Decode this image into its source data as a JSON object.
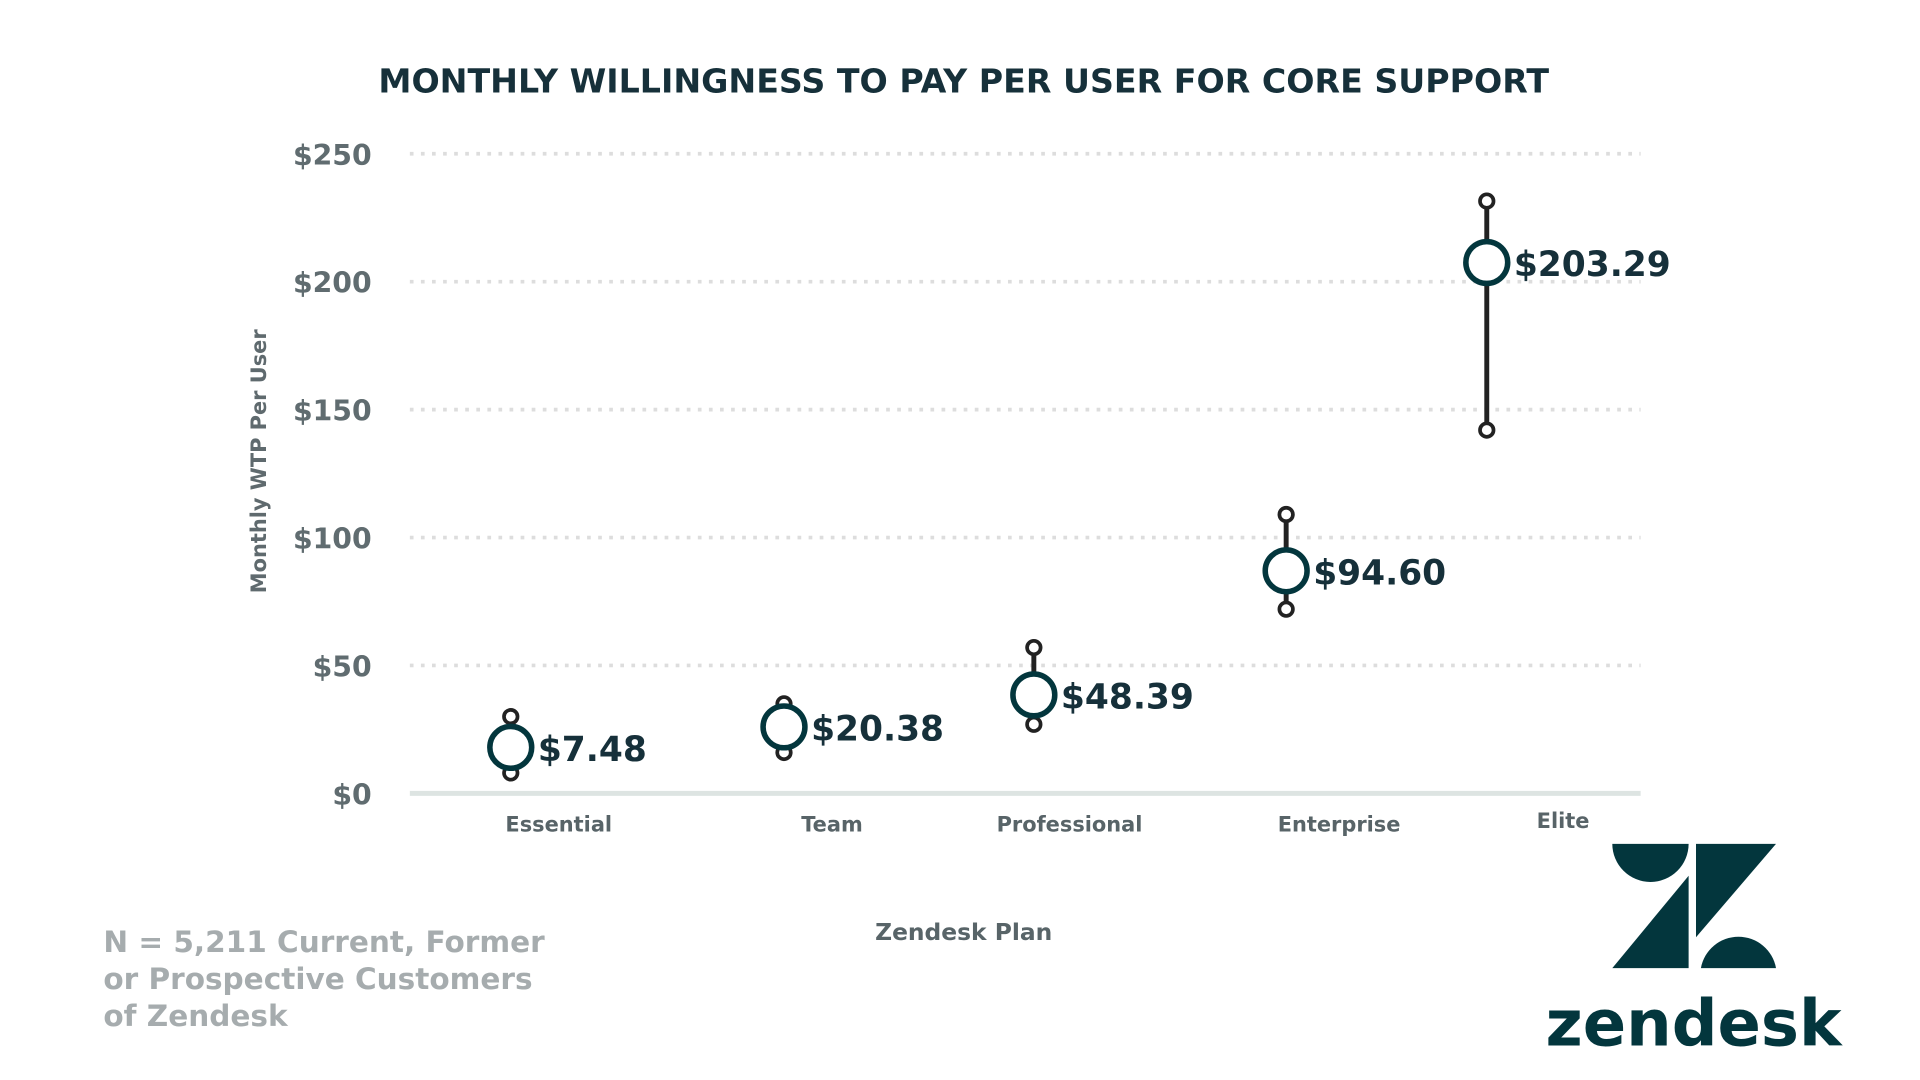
{
  "colors": {
    "marker": "#03363d",
    "whisker": "#222222",
    "grid": "#dddddd",
    "baseline": "#dde4e2",
    "brand": "#03363d"
  },
  "chart_data": {
    "type": "scatter",
    "title": "MONTHLY WILLINGNESS TO PAY PER USER FOR CORE SUPPORT",
    "xlabel": "Zendesk Plan",
    "ylabel": "Monthly WTP Per User",
    "ylim": [
      0,
      250
    ],
    "yticks": [
      0,
      50,
      100,
      150,
      200,
      250
    ],
    "ytick_labels": [
      "$0",
      "$50",
      "$100",
      "$150",
      "$200",
      "$250"
    ],
    "grid": true,
    "categories": [
      "Essential",
      "Team",
      "Professional",
      "Enterprise",
      "Elite"
    ],
    "series": [
      {
        "points": [
          {
            "category": "Essential",
            "value": 18,
            "low": 8,
            "high": 30,
            "label": "$7.48"
          },
          {
            "category": "Team",
            "value": 26,
            "low": 16,
            "high": 35,
            "label": "$20.38"
          },
          {
            "category": "Professional",
            "value": 38.5,
            "low": 27,
            "high": 57,
            "label": "$48.39"
          },
          {
            "category": "Enterprise",
            "value": 87,
            "low": 72,
            "high": 109,
            "label": "$94.60"
          },
          {
            "category": "Elite",
            "value": 207.5,
            "low": 142,
            "high": 231.5,
            "label": "$203.29"
          }
        ]
      }
    ]
  },
  "footnote": [
    "N = 5,211 Current, Former",
    "or Prospective Customers",
    "of Zendesk"
  ],
  "brand": {
    "name": "zendesk",
    "icon": "zendesk-logo-icon"
  }
}
